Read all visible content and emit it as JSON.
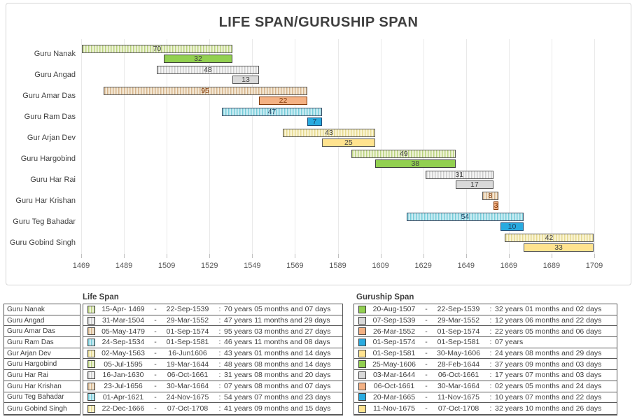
{
  "chart_data": {
    "type": "gantt",
    "title": "LIFE SPAN/GURUSHIP SPAN",
    "x_axis": {
      "min": 1469,
      "max": 1709,
      "step": 20,
      "tick_labels": [
        "1469",
        "1489",
        "1509",
        "1529",
        "1549",
        "1569",
        "1589",
        "1609",
        "1629",
        "1649",
        "1669",
        "1689",
        "1709"
      ]
    },
    "categories": [
      "Guru Nanak",
      "Guru Angad",
      "Guru Amar Das",
      "Guru Ram Das",
      "Gur Arjan Dev",
      "Guru Hargobind",
      "Guru Har Rai",
      "Guru Har Krishan",
      "Guru Teg Bahadar",
      "Guru Gobind Singh"
    ],
    "series": [
      {
        "name": "Life Span",
        "style": "hatched",
        "bars": [
          {
            "start": 1469.29,
            "end": 1539.73,
            "label": "70"
          },
          {
            "start": 1504.25,
            "end": 1552.24,
            "label": "48"
          },
          {
            "start": 1479.34,
            "end": 1574.67,
            "label": "95"
          },
          {
            "start": 1534.73,
            "end": 1581.67,
            "label": "47"
          },
          {
            "start": 1563.33,
            "end": 1606.46,
            "label": "43"
          },
          {
            "start": 1595.51,
            "end": 1644.21,
            "label": "49"
          },
          {
            "start": 1630.04,
            "end": 1661.76,
            "label": "31"
          },
          {
            "start": 1656.56,
            "end": 1664.24,
            "label": "8"
          },
          {
            "start": 1621.25,
            "end": 1675.9,
            "label": "54"
          },
          {
            "start": 1666.97,
            "end": 1708.77,
            "label": "42"
          }
        ]
      },
      {
        "name": "Guruship Span",
        "style": "solid",
        "bars": [
          {
            "start": 1507.63,
            "end": 1539.73,
            "label": "32"
          },
          {
            "start": 1539.68,
            "end": 1552.24,
            "label": "13"
          },
          {
            "start": 1552.23,
            "end": 1574.67,
            "label": "22"
          },
          {
            "start": 1574.67,
            "end": 1581.67,
            "label": "7"
          },
          {
            "start": 1581.67,
            "end": 1606.41,
            "label": "25"
          },
          {
            "start": 1606.4,
            "end": 1644.16,
            "label": "38"
          },
          {
            "start": 1644.17,
            "end": 1661.76,
            "label": "17"
          },
          {
            "start": 1661.76,
            "end": 1664.24,
            "label": "3"
          },
          {
            "start": 1665.22,
            "end": 1675.86,
            "label": "10"
          },
          {
            "start": 1675.86,
            "end": 1708.77,
            "label": "33"
          }
        ]
      }
    ]
  },
  "palette": {
    "groups": [
      "green",
      "gray",
      "tan",
      "cyan",
      "yellow",
      "green",
      "gray",
      "tan",
      "cyan",
      "yellow"
    ],
    "green": {
      "life_base": "#eef2d8",
      "life_stripe": "#b9d37e",
      "solid": "#92d050",
      "life_border": "#595959",
      "solid_border": "#404040",
      "label": "#404040"
    },
    "gray": {
      "life_base": "#f4f4f4",
      "life_stripe": "#cccccc",
      "solid": "#d9d9d9",
      "life_border": "#595959",
      "solid_border": "#595959",
      "label": "#404040"
    },
    "tan": {
      "life_base": "#f3e7d4",
      "life_stripe": "#d6b48c",
      "solid": "#f4b183",
      "life_border": "#595959",
      "solid_border": "#843c0c",
      "label": "#843c0c"
    },
    "cyan": {
      "life_base": "#c9ebf2",
      "life_stripe": "#76ccd9",
      "solid": "#29abe0",
      "life_border": "#44546a",
      "solid_border": "#1f4e79",
      "label": "#1f3f5f"
    },
    "yellow": {
      "life_base": "#f9f4d4",
      "life_stripe": "#e6d98f",
      "solid": "#ffe38f",
      "life_border": "#595959",
      "solid_border": "#595959",
      "label": "#404040"
    }
  },
  "table": {
    "life_header": "Life Span",
    "guruship_header": "Guruship Span",
    "dash": "-",
    "colon": ":",
    "rows": [
      {
        "name": "Guru Nanak",
        "life": {
          "start": "15-Apr- 1469",
          "end": "22-Sep-1539",
          "duration": "70 years 05 months and 07 days"
        },
        "guruship": {
          "start": "20-Aug-1507",
          "end": "22-Sep-1539",
          "duration": "32 years 01 months and 02 days"
        }
      },
      {
        "name": "Guru Angad",
        "life": {
          "start": "31-Mar-1504",
          "end": "29-Mar-1552",
          "duration": "47 years 11 months and 29 days"
        },
        "guruship": {
          "start": "07-Sep-1539",
          "end": "29-Mar-1552",
          "duration": "12 years 06 months and 22 days"
        }
      },
      {
        "name": "Guru Amar Das",
        "life": {
          "start": "05-May-1479",
          "end": "01-Sep-1574",
          "duration": "95 years 03 months and 27 days"
        },
        "guruship": {
          "start": "26-Mar-1552",
          "end": "01-Sep-1574",
          "duration": "22 years 05 months and 06 days"
        }
      },
      {
        "name": "Guru Ram Das",
        "life": {
          "start": "24-Sep-1534",
          "end": "01-Sep-1581",
          "duration": "46 years 11 months and 08 days"
        },
        "guruship": {
          "start": "01-Sep-1574",
          "end": "01-Sep-1581",
          "duration": "07 years"
        }
      },
      {
        "name": "Gur Arjan Dev",
        "life": {
          "start": "02-May-1563",
          "end": "16-Jun1606",
          "duration": "43 years 01 months and 14 days"
        },
        "guruship": {
          "start": "01-Sep-1581",
          "end": "30-May-1606",
          "duration": "24 years 08 months and 29 days"
        }
      },
      {
        "name": "Guru Hargobind",
        "life": {
          "start": "05-Jul-1595",
          "end": "19-Mar-1644",
          "duration": "48 years 08 months and 14 days"
        },
        "guruship": {
          "start": "25-May-1606",
          "end": "28-Feb-1644",
          "duration": "37 years 09 months and 03 days"
        }
      },
      {
        "name": "Guru Har Rai",
        "life": {
          "start": "16-Jan-1630",
          "end": "06-Oct-1661",
          "duration": "31 years 08 months and 20 days"
        },
        "guruship": {
          "start": "03-Mar-1644",
          "end": "06-Oct-1661",
          "duration": "17 years 07 months and 03 days"
        }
      },
      {
        "name": "Guru Har Krishan",
        "life": {
          "start": "23-Jul-1656",
          "end": "30-Mar-1664",
          "duration": "07 years 08 months and 07 days"
        },
        "guruship": {
          "start": "06-Oct-1661",
          "end": "30-Mar-1664",
          "duration": "02 years 05 months and 24 days"
        }
      },
      {
        "name": "Guru Teg Bahadar",
        "life": {
          "start": "01-Apr-1621",
          "end": "24-Nov-1675",
          "duration": "54 years 07 months and 23 days"
        },
        "guruship": {
          "start": "20-Mar-1665",
          "end": "11-Nov-1675",
          "duration": "10 years 07 months and 22 days"
        }
      },
      {
        "name": "Guru Gobind Singh",
        "life": {
          "start": "22-Dec-1666",
          "end": "07-Oct-1708",
          "duration": "41 years 09 months and 15 days"
        },
        "guruship": {
          "start": "11-Nov-1675",
          "end": "07-Oct-1708",
          "duration": "32 years 10 months and 26 days"
        }
      }
    ]
  }
}
